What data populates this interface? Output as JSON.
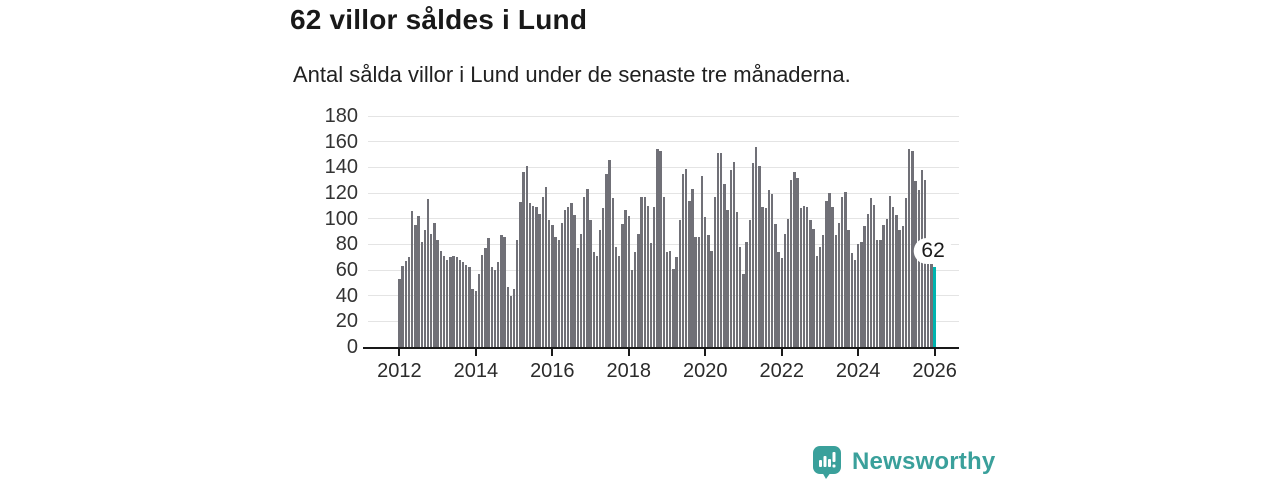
{
  "header": {
    "title": "62 villor såldes i Lund",
    "subtitle": "Antal sålda villor i Lund under de senaste tre månaderna."
  },
  "chart_data": {
    "type": "bar",
    "title": "62 villor såldes i Lund",
    "subtitle": "Antal sålda villor i Lund under de senaste tre månaderna.",
    "x_unit": "month",
    "x_monthly_start": "2012-01",
    "x_tick_labels": [
      "2012",
      "2014",
      "2016",
      "2018",
      "2020",
      "2022",
      "2024",
      "2026"
    ],
    "x_tick_month_indices": [
      0,
      24,
      48,
      72,
      96,
      120,
      144,
      168
    ],
    "ylim": [
      0,
      180
    ],
    "y_ticks": [
      0,
      20,
      40,
      60,
      80,
      100,
      120,
      140,
      160,
      180
    ],
    "grid": "horizontal",
    "legend": "none",
    "bar_color": "#707077",
    "values": [
      53,
      63,
      67,
      70,
      106,
      95,
      102,
      82,
      91,
      115,
      88,
      97,
      83,
      75,
      71,
      68,
      70,
      71,
      70,
      68,
      66,
      64,
      62,
      45,
      44,
      57,
      72,
      77,
      85,
      62,
      60,
      66,
      87,
      86,
      47,
      40,
      45,
      83,
      113,
      136,
      141,
      112,
      110,
      109,
      104,
      117,
      125,
      99,
      95,
      86,
      83,
      97,
      107,
      109,
      112,
      103,
      77,
      88,
      117,
      123,
      99,
      74,
      71,
      91,
      108,
      135,
      146,
      116,
      78,
      71,
      96,
      107,
      102,
      60,
      74,
      88,
      117,
      117,
      110,
      81,
      109,
      154,
      153,
      117,
      74,
      75,
      61,
      70,
      99,
      135,
      139,
      114,
      123,
      86,
      86,
      133,
      101,
      87,
      75,
      117,
      151,
      151,
      127,
      107,
      138,
      144,
      105,
      78,
      57,
      82,
      99,
      143,
      156,
      141,
      109,
      108,
      122,
      119,
      96,
      74,
      69,
      88,
      100,
      130,
      136,
      132,
      108,
      110,
      109,
      99,
      92,
      71,
      78,
      87,
      114,
      120,
      109,
      87,
      97,
      117,
      121,
      91,
      73,
      68,
      80,
      82,
      94,
      104,
      116,
      111,
      83,
      83,
      95,
      100,
      118,
      109,
      103,
      91,
      94,
      116,
      154,
      153,
      129,
      122,
      138,
      130,
      85,
      70,
      62
    ],
    "highlight": {
      "index": 168,
      "value": 62,
      "label": "62",
      "color": "#00b3ae"
    }
  },
  "footer": {
    "brand": "Newsworthy",
    "brand_color": "#3aa09b",
    "logo_icon": "newsworthy-speech-bubble-bar-chart-icon"
  }
}
